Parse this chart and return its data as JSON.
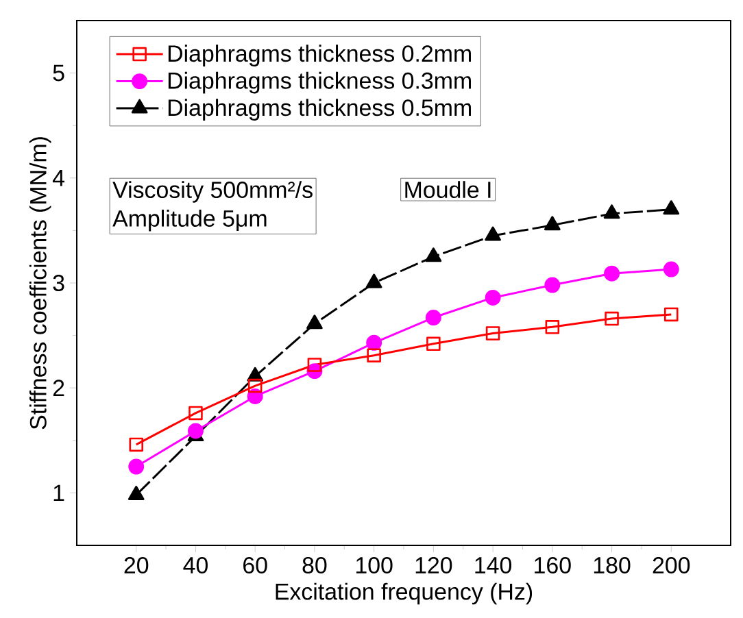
{
  "chart_data": {
    "type": "line",
    "xlabel": "Excitation frequency (Hz)",
    "ylabel": "Stiffness coefficients (MN/m)",
    "x": [
      20,
      40,
      60,
      80,
      100,
      120,
      140,
      160,
      180,
      200
    ],
    "xlim": [
      0,
      220
    ],
    "ylim": [
      0.5,
      5.5
    ],
    "xticks": [
      20,
      40,
      60,
      80,
      100,
      120,
      140,
      160,
      180,
      200
    ],
    "yticks": [
      1,
      2,
      3,
      4,
      5
    ],
    "series": [
      {
        "name": "Diaphragms thickness 0.2mm",
        "color": "#ff0000",
        "marker": "square",
        "values": [
          1.46,
          1.76,
          2.02,
          2.22,
          2.31,
          2.42,
          2.52,
          2.58,
          2.66,
          2.7
        ]
      },
      {
        "name": "Diaphragms thickness 0.3mm",
        "color": "#ff00ff",
        "marker": "circle",
        "values": [
          1.25,
          1.59,
          1.92,
          2.16,
          2.43,
          2.67,
          2.86,
          2.98,
          3.09,
          3.13
        ]
      },
      {
        "name": "Diaphragms thickness 0.5mm",
        "color": "#000000",
        "marker": "triangle",
        "line_style": "dashed",
        "values": [
          0.98,
          1.54,
          2.11,
          2.61,
          3.0,
          3.25,
          3.45,
          3.55,
          3.66,
          3.7
        ]
      }
    ],
    "legend": "top left",
    "grid": false,
    "annotations": [
      "Viscosity 500mm²/s",
      "Amplitude 5μm",
      "Moudle I"
    ]
  }
}
